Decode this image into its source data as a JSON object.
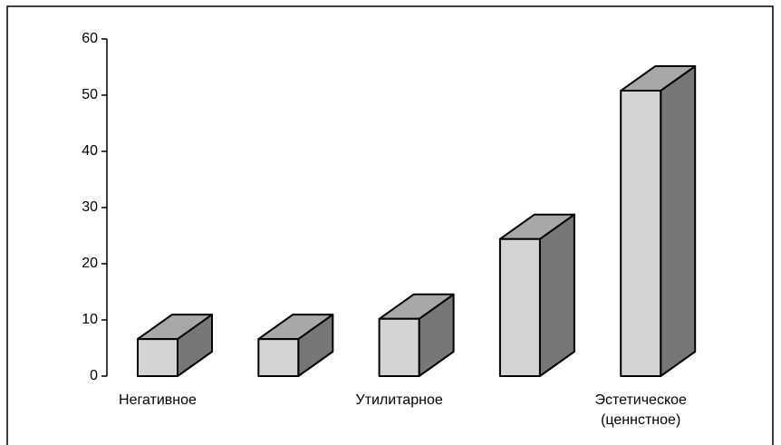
{
  "chart_data": {
    "type": "bar3d",
    "categories": [
      "Негативное",
      null,
      "Утилитарное",
      null,
      "Эстетическое (ценнстное)"
    ],
    "values": [
      6.6,
      6.6,
      10.2,
      24.4,
      50.8
    ],
    "face_colors": [
      "#d4d4d4",
      "#a8a8a8",
      "#777777"
    ],
    "ylim": [
      0,
      60
    ],
    "yticks": [
      0,
      10,
      20,
      30,
      40,
      50,
      60
    ]
  }
}
